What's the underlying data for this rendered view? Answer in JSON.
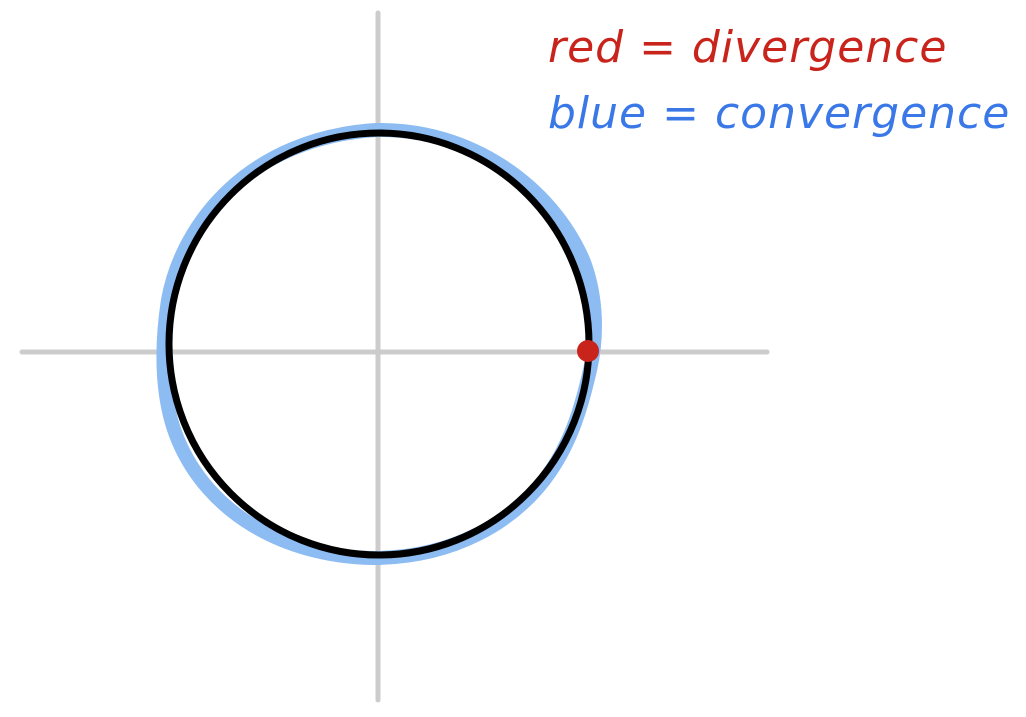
{
  "legend": {
    "divergence": {
      "text": "red = divergence",
      "color": "#c8241c"
    },
    "convergence": {
      "text": "blue = convergence",
      "color": "#3a78e8"
    }
  },
  "diagram": {
    "axis_color": "#cccccc",
    "circle_color": "#000000",
    "convergence_highlight_color": "#8cbcf2",
    "divergence_point_color": "#c8241c"
  }
}
